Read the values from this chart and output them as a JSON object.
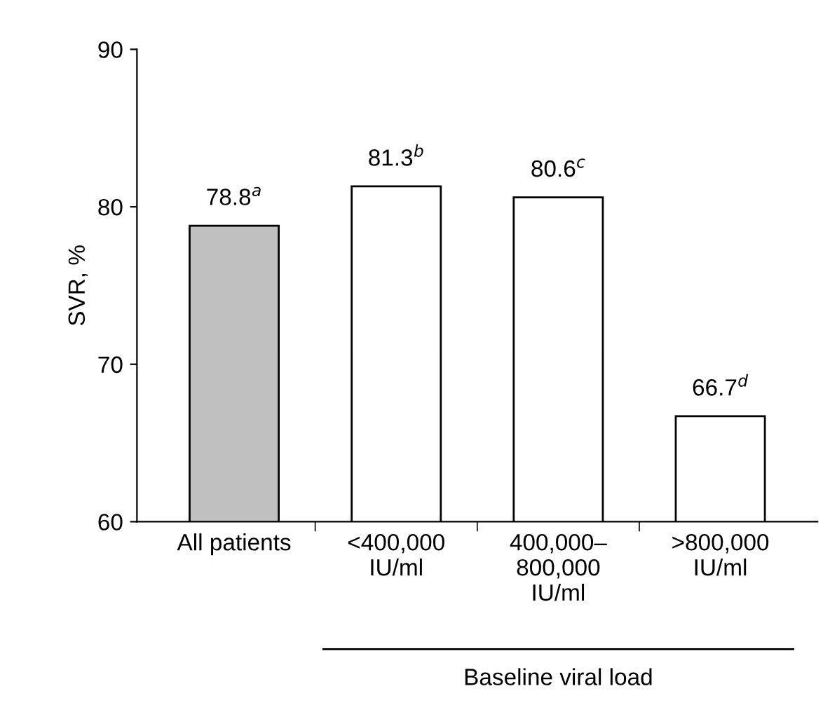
{
  "chart_data": {
    "type": "bar",
    "categories": [
      "All patients",
      "<400,000\nIU/ml",
      "400,000–\n800,000\nIU/ml",
      ">800,000\nIU/ml"
    ],
    "values": [
      78.8,
      81.3,
      80.6,
      66.7
    ],
    "colors": [
      "#c0c0c0",
      "#ffffff",
      "#ffffff",
      "#ffffff"
    ],
    "value_labels": [
      "78.8$^{a}$",
      "81.3$^{b}$",
      "80.6$^{c}$",
      "66.7$^{d}$"
    ],
    "ylabel": "SVR, %",
    "xlabel": "Baseline viral load",
    "ylim": [
      60,
      90
    ],
    "yticks": [
      60,
      70,
      80,
      90
    ],
    "grid": false,
    "legend": false
  }
}
